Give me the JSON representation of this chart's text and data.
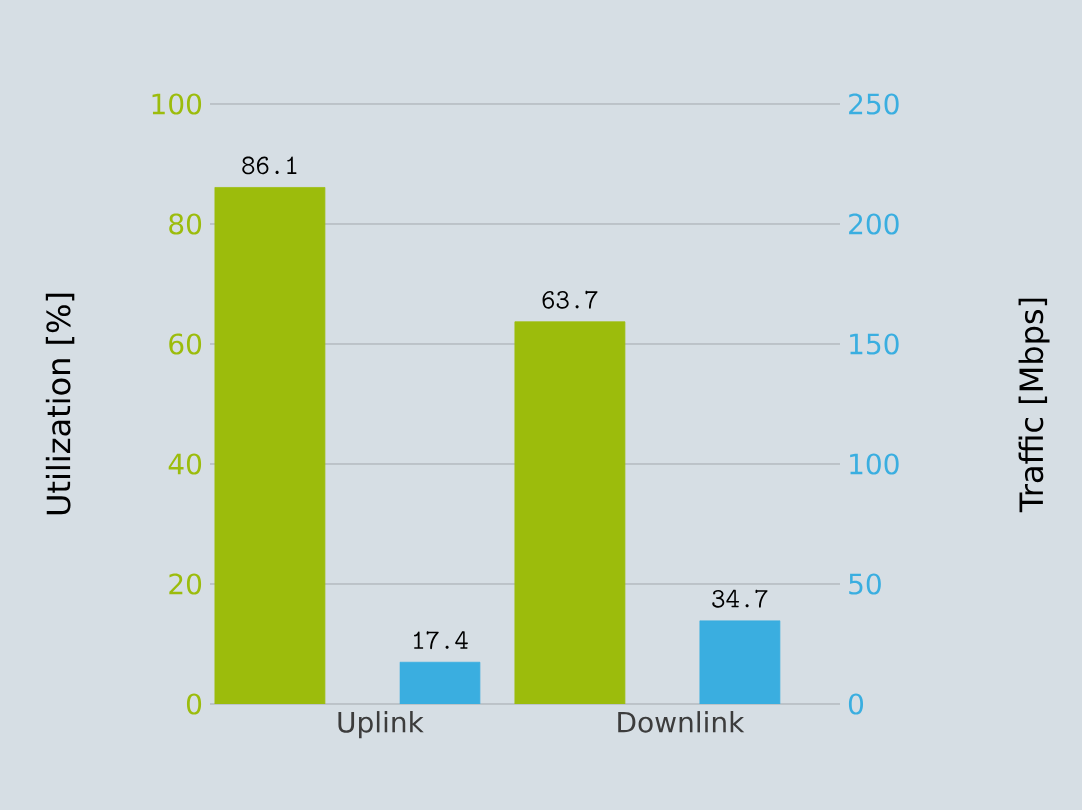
{
  "chart_data": {
    "type": "bar",
    "categories": [
      "Uplink",
      "Downlink"
    ],
    "series": [
      {
        "color": "#9cbc0c",
        "values": [
          86.1,
          63.7
        ]
      },
      {
        "color": "#3aaee0",
        "values": [
          17.4,
          34.7
        ],
        "axis": "y2"
      }
    ],
    "ylabel": "Utilization [%]",
    "y2label": "Traffic [Mbps]",
    "ylim": [
      0,
      100
    ],
    "yticks": [
      0,
      20,
      40,
      60,
      80,
      100
    ],
    "y2lim": [
      0,
      250
    ],
    "y2ticks": [
      0,
      50,
      100,
      150,
      200,
      250
    ],
    "grid": "y",
    "data_labels": true
  }
}
